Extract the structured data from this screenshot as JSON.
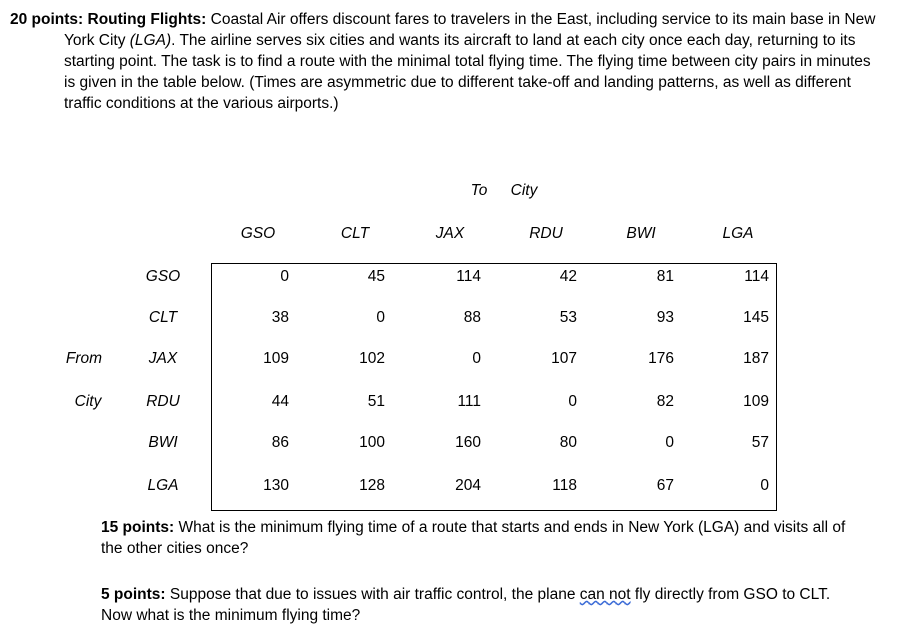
{
  "problem": {
    "points": "20 points: Routing Flights:",
    "text_1": "Coastal Air offers discount fares to travelers in the East, including service to its main base in New York City ",
    "italic": "(LGA)",
    "text_2": ". The airline serves six cities and wants its aircraft to land at each city once each day, returning to its starting point. The task is to find a route with the minimal total flying time. The flying time between city pairs in minutes is given in the table below. (Times are asymmetric due to different take-off and landing patterns, as well as different traffic conditions at the various airports.)"
  },
  "table": {
    "to_label": "To",
    "to_city_label": "City",
    "from_label": "From",
    "from_city_label": "City",
    "columns": [
      "GSO",
      "CLT",
      "JAX",
      "RDU",
      "BWI",
      "LGA"
    ],
    "row_labels": [
      "GSO",
      "CLT",
      "JAX",
      "RDU",
      "BWI",
      "LGA"
    ],
    "rows": [
      [
        0,
        45,
        114,
        42,
        81,
        114
      ],
      [
        38,
        0,
        88,
        53,
        93,
        145
      ],
      [
        109,
        102,
        0,
        107,
        176,
        187
      ],
      [
        44,
        51,
        111,
        0,
        82,
        109
      ],
      [
        86,
        100,
        160,
        80,
        0,
        57
      ],
      [
        130,
        128,
        204,
        118,
        67,
        0
      ]
    ]
  },
  "questions": [
    {
      "points": "15 points:",
      "text": "What is the minimum flying time of a route that starts and ends in New York (LGA) and visits all of the other cities once?"
    },
    {
      "points": "5 points:",
      "text_1": "Suppose that due to issues with air traffic control, the plane ",
      "underlined": "can not",
      "text_2": " fly directly from GSO to CLT. Now what is the minimum flying time?"
    }
  ]
}
